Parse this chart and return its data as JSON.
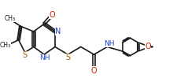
{
  "bg_color": "#ffffff",
  "line_color": "#1a1a1a",
  "bond_lw": 1.2,
  "font_size": 6.5,
  "fig_width": 2.34,
  "fig_height": 0.99,
  "dpi": 100,
  "xlim": [
    0,
    10.2
  ],
  "ylim": [
    0,
    4.3
  ]
}
